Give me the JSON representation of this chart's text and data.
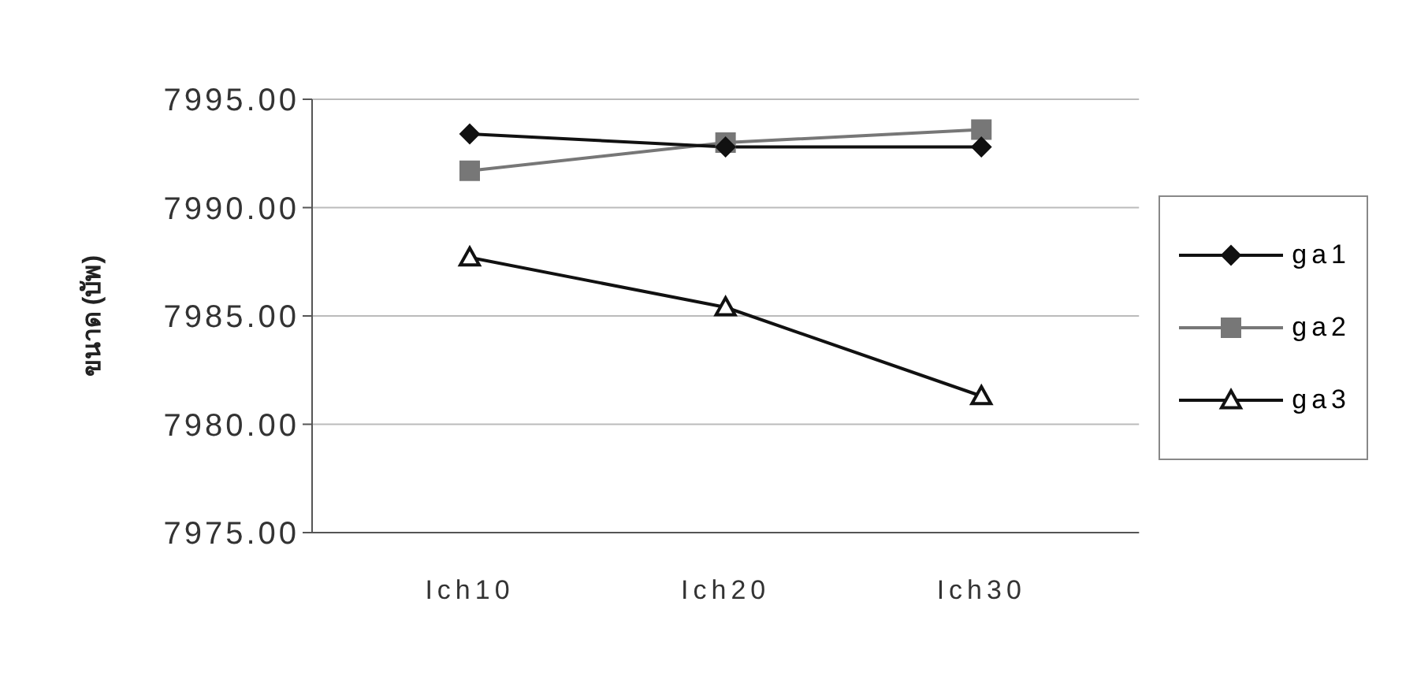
{
  "chart_data": {
    "type": "line",
    "ylabel": "ขนาด (บัพ)",
    "categories": [
      "Ich10",
      "Ich20",
      "Ich30"
    ],
    "series": [
      {
        "name": "ga1",
        "color": "#111111",
        "marker": "diamond",
        "values": [
          7993.4,
          7992.8,
          7992.8
        ]
      },
      {
        "name": "ga2",
        "color": "#777777",
        "marker": "square",
        "values": [
          7991.7,
          7993.0,
          7993.6
        ]
      },
      {
        "name": "ga3",
        "color": "#111111",
        "marker": "triangle",
        "values": [
          7987.7,
          7985.4,
          7981.3
        ]
      }
    ],
    "ylim": [
      7975,
      7995
    ],
    "yticks": [
      {
        "value": 7975,
        "label": "7975.00"
      },
      {
        "value": 7980,
        "label": "7980.00"
      },
      {
        "value": 7985,
        "label": "7985.00"
      },
      {
        "value": 7990,
        "label": "7990.00"
      },
      {
        "value": 7995,
        "label": "7995.00"
      }
    ],
    "grid": "y",
    "legend": "right"
  }
}
